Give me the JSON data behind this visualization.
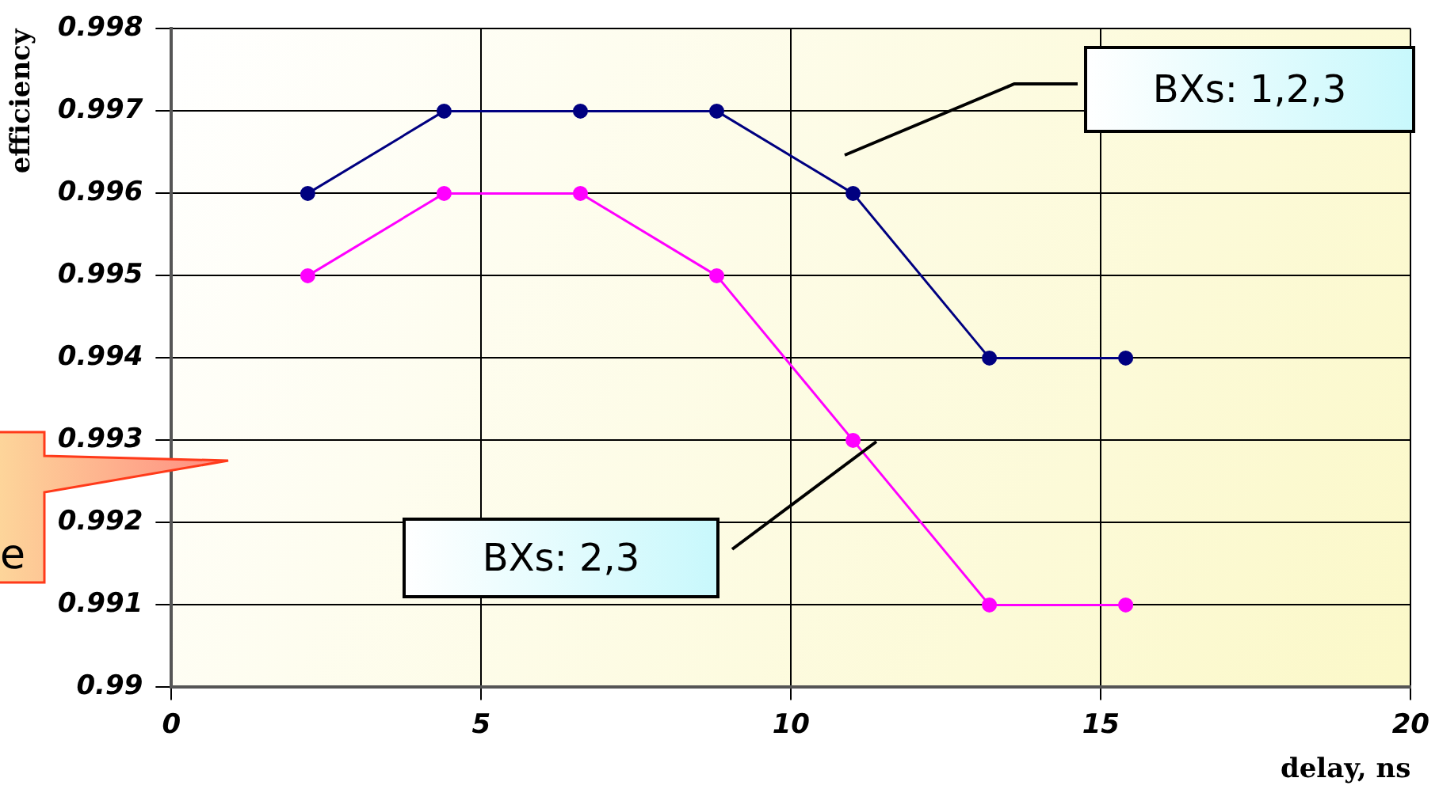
{
  "chart_data": {
    "type": "line",
    "xlabel": "delay, ns",
    "ylabel": "efficiency",
    "x": [
      2.2,
      4.4,
      6.6,
      8.8,
      11,
      13.2,
      15.4
    ],
    "series": [
      {
        "name": "BXs: 1,2,3",
        "color": "#000080",
        "values": [
          0.996,
          0.997,
          0.997,
          0.997,
          0.996,
          0.994,
          0.994
        ]
      },
      {
        "name": "BXs: 2,3",
        "color": "#ff00ff",
        "values": [
          0.995,
          0.996,
          0.996,
          0.995,
          0.993,
          0.991,
          0.991
        ]
      }
    ],
    "xlim": [
      0,
      20
    ],
    "xticks": [
      0,
      5,
      10,
      15,
      20
    ],
    "ylim": [
      0.99,
      0.998
    ],
    "yticks": [
      0.99,
      0.991,
      0.992,
      0.993,
      0.994,
      0.995,
      0.996,
      0.997,
      0.998
    ],
    "grid": true,
    "legend": false,
    "marker": "circle",
    "line_style": "solid",
    "annotations": [
      "e"
    ]
  }
}
